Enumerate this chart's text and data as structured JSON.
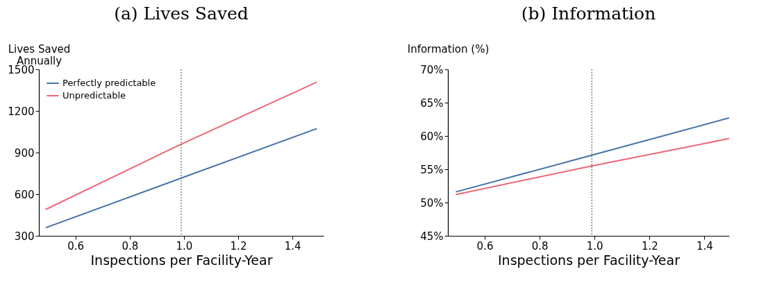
{
  "chart_data": [
    {
      "type": "line",
      "title": "(a) Lives Saved",
      "xlabel": "Inspections per Facility-Year",
      "ylabel": "Lives Saved\nAnnually",
      "x": [
        0.49,
        0.99,
        1.49
      ],
      "series": [
        {
          "name": "Perfectly predictable",
          "color": "#4472a8",
          "values": [
            358,
            716,
            1073
          ]
        },
        {
          "name": "Unpredictable",
          "color": "#ee6677",
          "values": [
            490,
            961,
            1408
          ]
        }
      ],
      "xlim": [
        0.465,
        1.515
      ],
      "xticks": [
        0.6,
        0.8,
        {
          "value": 1.0,
          "label": "1.0"
        },
        1.2,
        1.4
      ],
      "ylim": [
        300,
        1500
      ],
      "yticks": [
        300,
        600,
        900,
        1200,
        1500
      ],
      "ref_lines": [
        {
          "axis": "x",
          "value": 0.99,
          "color": "#444444",
          "line_style": "dotted"
        }
      ],
      "grid": false,
      "legend": "top left",
      "line_style": "solid",
      "marker": "none"
    },
    {
      "type": "line",
      "title": "(b) Information",
      "xlabel": "Inspections per Facility-Year",
      "ylabel": "Information (%)",
      "x": [
        0.495,
        0.99,
        1.49
      ],
      "series": [
        {
          "name": "Perfectly predictable",
          "color": "#4472a8",
          "values": [
            51.6,
            57.1,
            62.7
          ]
        },
        {
          "name": "Unpredictable",
          "color": "#ee6677",
          "values": [
            51.2,
            55.5,
            59.6
          ]
        }
      ],
      "xlim": [
        0.466,
        1.49
      ],
      "xticks": [
        0.6,
        0.8,
        {
          "value": 1.0,
          "label": "1.0"
        },
        1.2,
        1.4
      ],
      "ylim": [
        45,
        70
      ],
      "yticks": [
        {
          "value": 45,
          "label": "45%"
        },
        {
          "value": 50,
          "label": "50%"
        },
        {
          "value": 55,
          "label": "55%"
        },
        {
          "value": 60,
          "label": "60%"
        },
        {
          "value": 65,
          "label": "65%"
        },
        {
          "value": 70,
          "label": "70%"
        }
      ],
      "ref_lines": [
        {
          "axis": "x",
          "value": 0.99,
          "color": "#444444",
          "line_style": "dotted"
        }
      ],
      "grid": false,
      "legend": "top left",
      "line_style": "solid",
      "marker": "none"
    }
  ]
}
